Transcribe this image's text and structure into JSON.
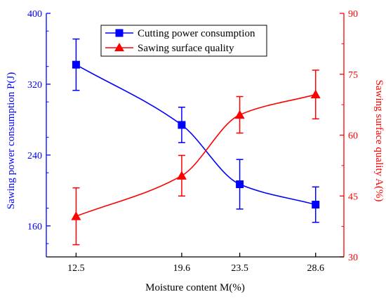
{
  "chart_data": {
    "type": "line",
    "title": "",
    "xlabel": "Moisture content M(%)",
    "x_ticks": [
      "12.5",
      "19.6",
      "23.5",
      "28.6"
    ],
    "x": [
      12.5,
      19.6,
      23.5,
      28.6
    ],
    "y_left": {
      "label": "Sawing power consumption P(J)",
      "ylim": [
        125,
        400
      ],
      "ticks": [
        "160",
        "240",
        "320",
        "400"
      ],
      "color": "#0000ff"
    },
    "y_right": {
      "label": "Sawing surface quality A(%)",
      "ylim": [
        30,
        90
      ],
      "ticks": [
        "30",
        "45",
        "60",
        "75",
        "90"
      ],
      "color": "#ff0000"
    },
    "series": [
      {
        "name": "Cutting power consumption",
        "axis": "left",
        "marker": "square",
        "color": "#0000ff",
        "values": [
          342,
          274,
          207,
          184
        ],
        "error": [
          29,
          20,
          28,
          20
        ]
      },
      {
        "name": "Sawing surface quality",
        "axis": "right",
        "marker": "triangle",
        "color": "#ff0000",
        "values": [
          40,
          50,
          65,
          70
        ],
        "error": [
          7,
          5,
          4.5,
          6
        ]
      }
    ],
    "legend_position": "top-center",
    "grid": false
  }
}
